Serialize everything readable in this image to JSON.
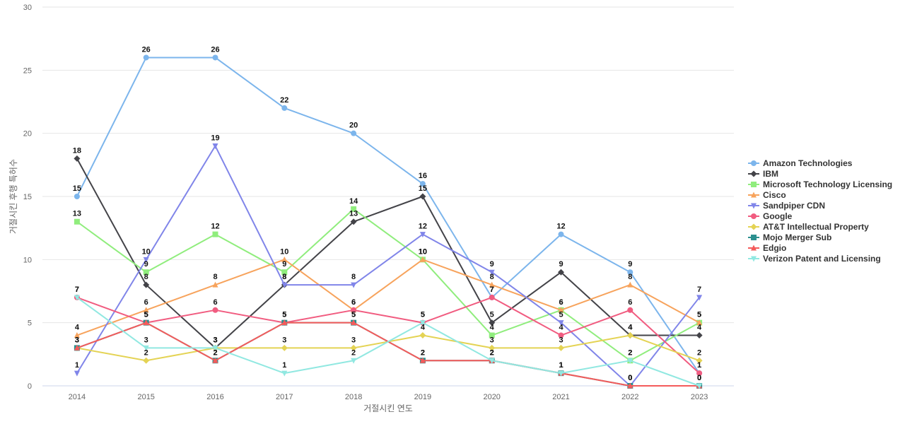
{
  "chart_data": {
    "type": "line",
    "title": "",
    "xlabel": "거절시킨 연도",
    "ylabel": "거절시킨 후행 특허수",
    "x": [
      "2014",
      "2015",
      "2016",
      "2017",
      "2018",
      "2019",
      "2020",
      "2021",
      "2022",
      "2023"
    ],
    "ylim": [
      0,
      30
    ],
    "yticks": [
      0,
      5,
      10,
      15,
      20,
      25,
      30
    ],
    "grid": "horizontal",
    "legend": "right",
    "series": [
      {
        "name": "Amazon Technologies",
        "color": "#7cb5ec",
        "marker": "circle",
        "values": [
          15,
          26,
          26,
          22,
          20,
          16,
          7,
          12,
          9,
          1
        ]
      },
      {
        "name": "IBM",
        "color": "#434348",
        "marker": "diamond",
        "values": [
          18,
          8,
          3,
          8,
          13,
          15,
          5,
          9,
          4,
          4
        ]
      },
      {
        "name": "Microsoft Technology Licensing",
        "color": "#90ed7d",
        "marker": "square",
        "values": [
          13,
          9,
          12,
          9,
          14,
          10,
          4,
          6,
          2,
          5
        ]
      },
      {
        "name": "Cisco",
        "color": "#f7a35c",
        "marker": "triangle",
        "values": [
          4,
          6,
          8,
          10,
          6,
          10,
          8,
          6,
          8,
          5
        ]
      },
      {
        "name": "Sandpiper CDN",
        "color": "#8085e9",
        "marker": "triangle-down",
        "values": [
          1,
          10,
          19,
          8,
          8,
          12,
          9,
          5,
          0,
          7
        ]
      },
      {
        "name": "Google",
        "color": "#f15c80",
        "marker": "circle",
        "values": [
          7,
          5,
          6,
          5,
          6,
          5,
          7,
          4,
          6,
          1
        ]
      },
      {
        "name": "AT&T Intellectual Property",
        "color": "#e4d354",
        "marker": "diamond",
        "values": [
          3,
          2,
          3,
          3,
          3,
          4,
          3,
          3,
          4,
          2
        ]
      },
      {
        "name": "Mojo Merger Sub",
        "color": "#2b908f",
        "marker": "square",
        "values": [
          3,
          5,
          2,
          5,
          5,
          2,
          2,
          1,
          0,
          0
        ]
      },
      {
        "name": "Edgio",
        "color": "#f45b5b",
        "marker": "triangle",
        "values": [
          3,
          5,
          2,
          5,
          5,
          2,
          2,
          1,
          0,
          0
        ]
      },
      {
        "name": "Verizon Patent and Licensing",
        "color": "#91e8e1",
        "marker": "triangle-down",
        "values": [
          7,
          3,
          3,
          1,
          2,
          5,
          2,
          1,
          2,
          0
        ]
      }
    ]
  }
}
